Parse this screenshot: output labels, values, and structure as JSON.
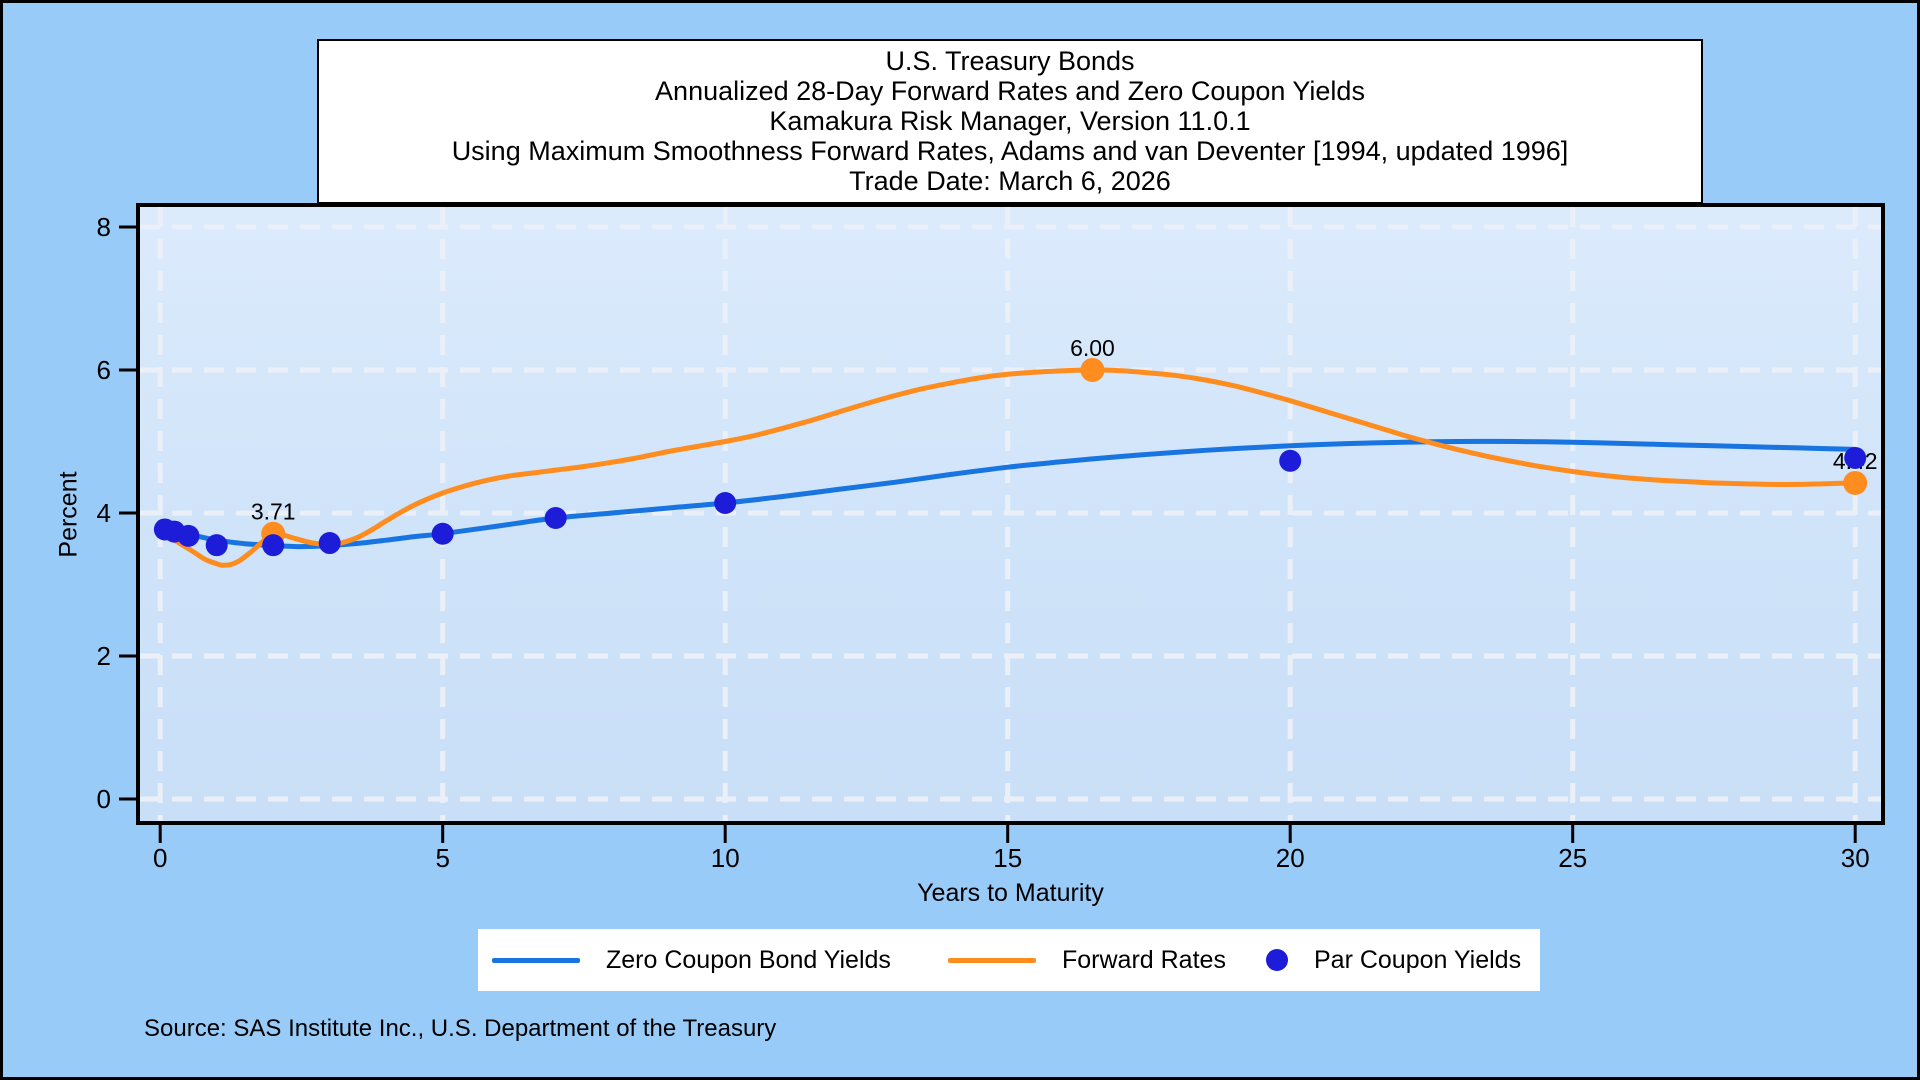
{
  "title_box": {
    "lines": [
      "U.S. Treasury Bonds",
      "Annualized 28-Day Forward Rates and Zero Coupon Yields",
      "Kamakura Risk Manager, Version 11.0.1",
      "Using Maximum Smoothness Forward Rates, Adams and van Deventer [1994, updated 1996]",
      "Trade Date: March 6, 2026"
    ]
  },
  "source_note": "Source: SAS Institute Inc., U.S. Department of the Treasury",
  "chart_data": {
    "type": "line",
    "title": "U.S. Treasury Bonds — Annualized 28-Day Forward Rates and Zero Coupon Yields",
    "xlabel": "Years to Maturity",
    "ylabel": "Percent",
    "xlim": [
      0,
      30
    ],
    "ylim": [
      0,
      8
    ],
    "x_ticks": [
      0,
      5,
      10,
      15,
      20,
      25,
      30
    ],
    "y_ticks": [
      0,
      2,
      4,
      6,
      8
    ],
    "grid": "white-dashed-both-axes",
    "background": {
      "page": "#99cbf8",
      "plot_top": "#dcebfc",
      "plot_bottom": "#c8dff7",
      "gridline": "#ebf0f8"
    },
    "legend": {
      "position": "bottom-center",
      "items": [
        {
          "label": "Zero Coupon Bond Yields",
          "swatch": "line",
          "color": "#1874e0"
        },
        {
          "label": "Forward Rates",
          "swatch": "line",
          "color": "#ff8c1e"
        },
        {
          "label": "Par Coupon Yields",
          "swatch": "dot",
          "color": "#1c1cd9"
        }
      ]
    },
    "series": [
      {
        "name": "Zero Coupon Bond Yields",
        "type": "line",
        "color": "#1874e0",
        "points": [
          [
            0,
            3.76
          ],
          [
            0.25,
            3.73
          ],
          [
            0.5,
            3.7
          ],
          [
            0.75,
            3.66
          ],
          [
            1,
            3.62
          ],
          [
            1.5,
            3.57
          ],
          [
            2,
            3.545
          ],
          [
            2.5,
            3.53
          ],
          [
            3,
            3.545
          ],
          [
            3.5,
            3.575
          ],
          [
            4,
            3.62
          ],
          [
            4.5,
            3.67
          ],
          [
            5,
            3.71
          ],
          [
            6,
            3.82
          ],
          [
            7,
            3.93
          ],
          [
            8,
            4.0
          ],
          [
            9,
            4.07
          ],
          [
            10,
            4.14
          ],
          [
            11,
            4.23
          ],
          [
            12,
            4.33
          ],
          [
            13,
            4.43
          ],
          [
            14,
            4.54
          ],
          [
            15,
            4.64
          ],
          [
            16,
            4.72
          ],
          [
            17,
            4.79
          ],
          [
            18,
            4.85
          ],
          [
            19,
            4.9
          ],
          [
            20,
            4.94
          ],
          [
            21,
            4.97
          ],
          [
            22,
            4.99
          ],
          [
            23,
            5.0
          ],
          [
            24,
            5.0
          ],
          [
            25,
            4.99
          ],
          [
            26,
            4.97
          ],
          [
            27,
            4.95
          ],
          [
            28,
            4.93
          ],
          [
            29,
            4.91
          ],
          [
            30,
            4.89
          ]
        ]
      },
      {
        "name": "Forward Rates",
        "type": "line",
        "color": "#ff8c1e",
        "points": [
          [
            0,
            3.7
          ],
          [
            0.2,
            3.64
          ],
          [
            0.4,
            3.55
          ],
          [
            0.6,
            3.45
          ],
          [
            0.8,
            3.35
          ],
          [
            1,
            3.29
          ],
          [
            1.1,
            3.27
          ],
          [
            1.25,
            3.28
          ],
          [
            1.4,
            3.33
          ],
          [
            1.6,
            3.45
          ],
          [
            1.8,
            3.59
          ],
          [
            2,
            3.71
          ],
          [
            2.15,
            3.7
          ],
          [
            2.4,
            3.64
          ],
          [
            2.7,
            3.58
          ],
          [
            3,
            3.56
          ],
          [
            3.2,
            3.58
          ],
          [
            3.5,
            3.66
          ],
          [
            3.8,
            3.79
          ],
          [
            4,
            3.89
          ],
          [
            4.3,
            4.03
          ],
          [
            4.6,
            4.15
          ],
          [
            5,
            4.28
          ],
          [
            5.4,
            4.38
          ],
          [
            5.8,
            4.46
          ],
          [
            6.2,
            4.52
          ],
          [
            6.6,
            4.56
          ],
          [
            7,
            4.6
          ],
          [
            7.5,
            4.65
          ],
          [
            8,
            4.71
          ],
          [
            8.5,
            4.78
          ],
          [
            9,
            4.86
          ],
          [
            9.5,
            4.93
          ],
          [
            10,
            5.0
          ],
          [
            10.5,
            5.08
          ],
          [
            11,
            5.18
          ],
          [
            11.5,
            5.29
          ],
          [
            12,
            5.41
          ],
          [
            12.5,
            5.53
          ],
          [
            13,
            5.64
          ],
          [
            13.5,
            5.74
          ],
          [
            14,
            5.82
          ],
          [
            14.5,
            5.89
          ],
          [
            15,
            5.94
          ],
          [
            15.5,
            5.97
          ],
          [
            16,
            5.99
          ],
          [
            16.5,
            6.0
          ],
          [
            17,
            5.99
          ],
          [
            17.5,
            5.96
          ],
          [
            18,
            5.92
          ],
          [
            18.5,
            5.86
          ],
          [
            19,
            5.78
          ],
          [
            19.5,
            5.68
          ],
          [
            20,
            5.57
          ],
          [
            20.5,
            5.45
          ],
          [
            21,
            5.33
          ],
          [
            21.5,
            5.21
          ],
          [
            22,
            5.09
          ],
          [
            22.5,
            4.98
          ],
          [
            23,
            4.88
          ],
          [
            23.5,
            4.79
          ],
          [
            24,
            4.71
          ],
          [
            24.5,
            4.64
          ],
          [
            25,
            4.58
          ],
          [
            25.5,
            4.53
          ],
          [
            26,
            4.49
          ],
          [
            26.5,
            4.46
          ],
          [
            27,
            4.44
          ],
          [
            27.5,
            4.42
          ],
          [
            28,
            4.41
          ],
          [
            28.5,
            4.4
          ],
          [
            29,
            4.4
          ],
          [
            29.5,
            4.41
          ],
          [
            30,
            4.42
          ]
        ],
        "labeled_points": [
          {
            "x": 2,
            "y": 3.71,
            "label": "3.71"
          },
          {
            "x": 16.5,
            "y": 6.0,
            "label": "6.00"
          },
          {
            "x": 30,
            "y": 4.42,
            "label": "4.42"
          }
        ]
      },
      {
        "name": "Par Coupon Yields",
        "type": "scatter",
        "color": "#1c1cd9",
        "points": [
          [
            0.083,
            3.77
          ],
          [
            0.25,
            3.74
          ],
          [
            0.5,
            3.68
          ],
          [
            1,
            3.55
          ],
          [
            2,
            3.55
          ],
          [
            3,
            3.58
          ],
          [
            5,
            3.71
          ],
          [
            7,
            3.93
          ],
          [
            10,
            4.14
          ],
          [
            20,
            4.73
          ],
          [
            30,
            4.77
          ]
        ]
      }
    ]
  }
}
